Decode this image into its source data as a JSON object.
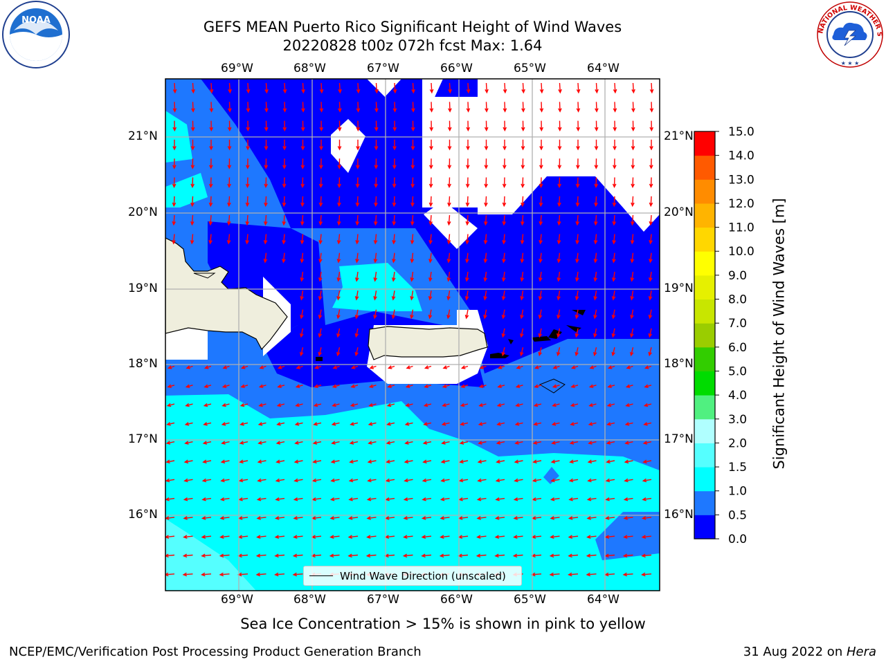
{
  "header": {
    "title_line1": "GEFS MEAN Puerto Rico Significant Height of Wind Waves",
    "title_line2": "20220828 t00z 072h fcst   Max: 1.64"
  },
  "logos": {
    "left": "NOAA",
    "left_ring": "NATIONAL OCEANIC AND ATMOSPHERIC ADMINISTRATION · U.S. DEPARTMENT OF COMMERCE",
    "right_ring": "NATIONAL WEATHER SERVICE"
  },
  "map": {
    "lon_labels": [
      "69°W",
      "68°W",
      "67°W",
      "66°W",
      "65°W",
      "64°W"
    ],
    "lat_labels": [
      "21°N",
      "20°N",
      "19°N",
      "18°N",
      "17°N",
      "16°N"
    ],
    "extent": {
      "lon_min": -70.0,
      "lon_max": -63.25,
      "lat_min": 15.0,
      "lat_max": 21.75
    },
    "grid": true,
    "vector_direction": "west to south-southwest"
  },
  "legend": {
    "label": "Wind Wave Direction (unscaled)"
  },
  "colorbar": {
    "label": "Significant Height of Wind Waves [m]",
    "ticks": [
      "0.0",
      "0.5",
      "1.0",
      "1.5",
      "2.0",
      "3.0",
      "4.0",
      "5.0",
      "6.0",
      "7.0",
      "8.0",
      "9.0",
      "10.0",
      "11.0",
      "12.0",
      "13.0",
      "14.0",
      "15.0"
    ],
    "colors": [
      "#0000ff",
      "#1e78ff",
      "#00ffff",
      "#55ffff",
      "#b0ffff",
      "#50f080",
      "#00dc00",
      "#32cd00",
      "#9acd00",
      "#c8e600",
      "#e6f000",
      "#ffff00",
      "#ffd700",
      "#ffb400",
      "#ff8c00",
      "#ff5a00",
      "#ff0000"
    ]
  },
  "note": "Sea Ice Concentration > 15% is shown in pink to yellow",
  "footer": {
    "left": "NCEP/EMC/Verification Post Processing Product Generation Branch",
    "date": "31 Aug 2022 on ",
    "machine": "Hera"
  }
}
